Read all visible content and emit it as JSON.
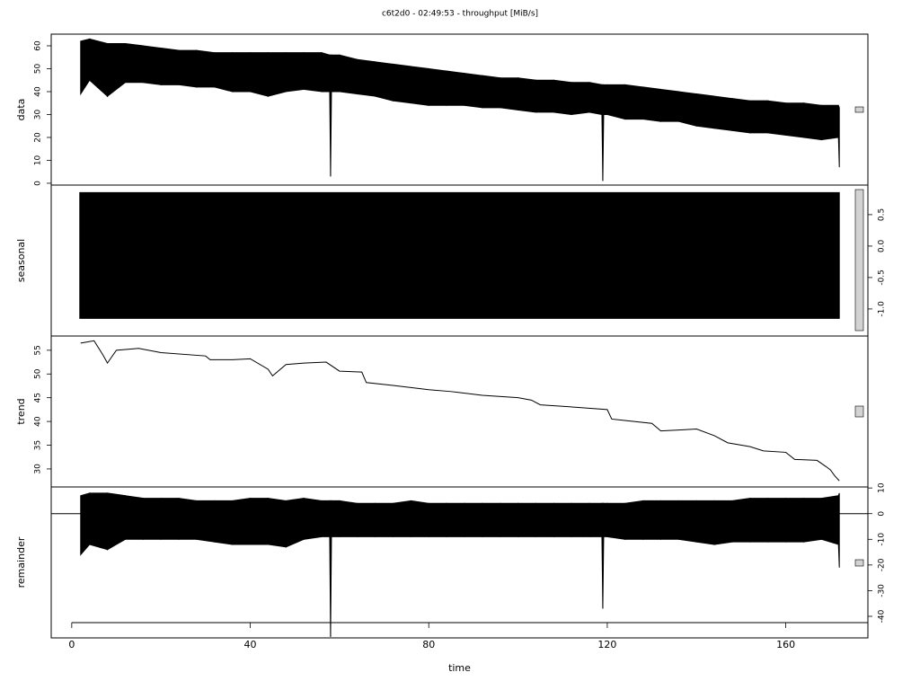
{
  "chart_data": [
    {
      "type": "band",
      "title": "c6t2d0 - 02:49:53 - throughput [MiB/s]",
      "ylabel": "data",
      "yaxis_side": "left",
      "xlim": [
        -4.6,
        178.4
      ],
      "ylim": [
        -0.8,
        65.1
      ],
      "yticks": [
        0,
        10,
        20,
        30,
        40,
        50,
        60
      ],
      "color": "#000000",
      "x": [
        2,
        4,
        8,
        12,
        16,
        20,
        24,
        28,
        32,
        36,
        40,
        44,
        48,
        52,
        56,
        57.8,
        58,
        58.2,
        60,
        64,
        68,
        72,
        76,
        80,
        84,
        88,
        92,
        96,
        100,
        104,
        108,
        112,
        116,
        118.8,
        119,
        119.2,
        120,
        124,
        128,
        132,
        136,
        140,
        144,
        148,
        152,
        156,
        160,
        164,
        168,
        171.8,
        172
      ],
      "high": [
        62,
        63,
        61,
        61,
        60,
        59,
        58,
        58,
        57,
        57,
        57,
        57,
        57,
        57,
        57,
        56,
        56,
        56,
        56,
        54,
        53,
        52,
        51,
        50,
        49,
        48,
        47,
        46,
        46,
        45,
        45,
        44,
        44,
        43,
        43,
        43,
        43,
        43,
        42,
        41,
        40,
        39,
        38,
        37,
        36,
        36,
        35,
        35,
        34,
        34,
        33
      ],
      "low": [
        39,
        45,
        38,
        44,
        44,
        43,
        43,
        42,
        42,
        40,
        40,
        38,
        40,
        41,
        40,
        40,
        3,
        40,
        40,
        39,
        38,
        36,
        35,
        34,
        34,
        34,
        33,
        33,
        32,
        31,
        31,
        30,
        31,
        30,
        1,
        30,
        30,
        28,
        28,
        27,
        27,
        25,
        24,
        23,
        22,
        22,
        21,
        20,
        19,
        20,
        7
      ]
    },
    {
      "type": "band",
      "ylabel": "seasonal",
      "yaxis_side": "right",
      "xlim": [
        -4.6,
        178.4
      ],
      "ylim": [
        -1.43,
        0.97
      ],
      "yticks": [
        0.5,
        {
          "value": 0,
          "label": "0.0"
        },
        -0.5,
        {
          "value": -1,
          "label": "-1.0"
        }
      ],
      "color": "#000000",
      "x": [
        1.8,
        172
      ],
      "high": [
        0.85,
        0.85
      ],
      "low": [
        -1.15,
        -1.15
      ]
    },
    {
      "type": "line",
      "ylabel": "trend",
      "yaxis_side": "left",
      "xlim": [
        -4.6,
        178.4
      ],
      "ylim": [
        26.2,
        58.0
      ],
      "yticks": [
        30,
        35,
        40,
        45,
        50,
        55
      ],
      "color": "#000000",
      "x": [
        2,
        5,
        7,
        8,
        10,
        15,
        20,
        30,
        31,
        36,
        40,
        44,
        45,
        48,
        52,
        57,
        60,
        65,
        66,
        72,
        80,
        85,
        92,
        100,
        103,
        105,
        110,
        120,
        121,
        123,
        130,
        132,
        140,
        144,
        147,
        152,
        155,
        160,
        162,
        167,
        169,
        170,
        171,
        172
      ],
      "values": [
        56.5,
        57,
        54,
        52.3,
        55,
        55.4,
        54.5,
        53.8,
        53,
        53,
        53.2,
        51,
        49.6,
        52,
        52.3,
        52.5,
        50.6,
        50.4,
        48.2,
        47.6,
        46.7,
        46.3,
        45.5,
        45,
        44.5,
        43.5,
        43.2,
        42.5,
        40.5,
        40.3,
        39.6,
        38,
        38.4,
        37,
        35.5,
        34.7,
        33.8,
        33.5,
        32,
        31.8,
        30.5,
        29.8,
        28.5,
        27.5
      ]
    },
    {
      "type": "band",
      "ylabel": "remainder",
      "yaxis_side": "right",
      "xlabel": "time",
      "xlim": [
        -4.6,
        178.4
      ],
      "ylim": [
        -48.4,
        10.4
      ],
      "yticks": [
        10,
        0,
        -10,
        -20,
        -30,
        -40
      ],
      "xticks": [
        0,
        40,
        80,
        120,
        160
      ],
      "hline": 0,
      "color": "#000000",
      "x": [
        2,
        4,
        8,
        12,
        16,
        20,
        24,
        28,
        32,
        36,
        40,
        44,
        48,
        52,
        56,
        57.8,
        58,
        58.2,
        60,
        64,
        68,
        72,
        76,
        80,
        84,
        88,
        92,
        96,
        100,
        104,
        108,
        112,
        116,
        118.8,
        119,
        119.2,
        120,
        124,
        128,
        132,
        136,
        140,
        144,
        148,
        152,
        156,
        160,
        164,
        168,
        171.8,
        172
      ],
      "high": [
        7,
        8,
        8,
        7,
        6,
        6,
        6,
        5,
        5,
        5,
        6,
        6,
        5,
        6,
        5,
        5,
        5,
        5,
        5,
        4,
        4,
        4,
        5,
        4,
        4,
        4,
        4,
        4,
        4,
        4,
        4,
        4,
        4,
        4,
        4,
        4,
        4,
        4,
        5,
        5,
        5,
        5,
        5,
        5,
        6,
        6,
        6,
        6,
        6,
        7,
        8
      ],
      "low": [
        -16,
        -12,
        -14,
        -10,
        -10,
        -10,
        -10,
        -10,
        -11,
        -12,
        -12,
        -12,
        -13,
        -10,
        -9,
        -9,
        -48,
        -9,
        -9,
        -9,
        -9,
        -9,
        -9,
        -9,
        -9,
        -9,
        -9,
        -9,
        -9,
        -9,
        -9,
        -9,
        -9,
        -9,
        -37,
        -9,
        -9,
        -10,
        -10,
        -10,
        -10,
        -11,
        -12,
        -11,
        -11,
        -11,
        -11,
        -11,
        -10,
        -12,
        -21
      ]
    }
  ]
}
